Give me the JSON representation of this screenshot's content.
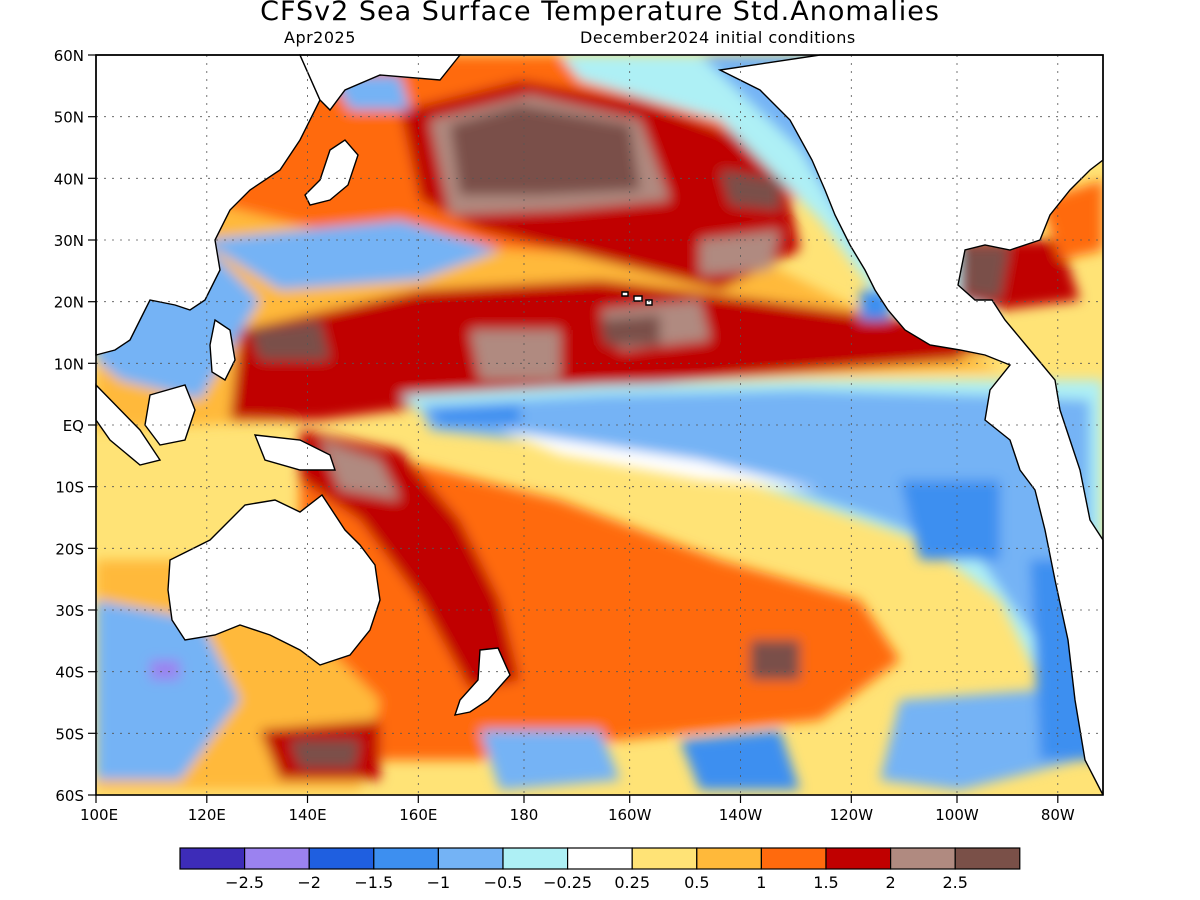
{
  "header": {
    "title": "CFSv2 Sea Surface Temperature Std.Anomalies",
    "target_month": "Apr2025",
    "initial_conditions": "December2024 initial conditions"
  },
  "map": {
    "lat_labels": [
      "60N",
      "50N",
      "40N",
      "30N",
      "20N",
      "10N",
      "EQ",
      "10S",
      "20S",
      "30S",
      "40S",
      "50S",
      "60S"
    ],
    "lon_labels": [
      "100E",
      "120E",
      "140E",
      "160E",
      "180",
      "160W",
      "140W",
      "120W",
      "100W",
      "80W"
    ]
  },
  "colorbar": {
    "colors": [
      "#3d2cb8",
      "#9b82f0",
      "#1f5fe0",
      "#3d8ff0",
      "#74b3f5",
      "#aef0f5",
      "#ffffff",
      "#ffe376",
      "#ffb93a",
      "#ff6a0d",
      "#c00000",
      "#b08a80",
      "#7a5048"
    ],
    "labels": [
      "−2.5",
      "−2",
      "−1.5",
      "−1",
      "−0.5",
      "−0.25",
      "0.25",
      "0.5",
      "1",
      "1.5",
      "2",
      "2.5"
    ]
  }
}
